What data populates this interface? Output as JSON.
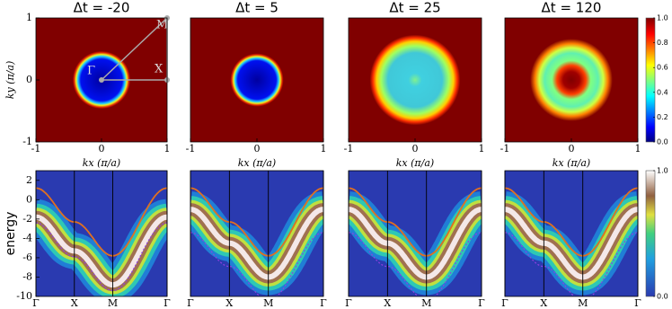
{
  "chart_data": [
    {
      "type": "heatmap",
      "title": "Δt = -20",
      "xlabel": "kx (π/a)",
      "ylabel": "ky (π/a)",
      "xlim": [
        -1,
        1
      ],
      "ylim": [
        -1,
        1
      ],
      "xticks": [
        -1,
        0,
        1
      ],
      "yticks": [
        -1,
        0,
        1
      ],
      "annotations": [
        "M",
        "Γ",
        "X"
      ]
    },
    {
      "type": "heatmap",
      "title": "Δt = 5",
      "xlabel": "kx (π/a)",
      "xlim": [
        -1,
        1
      ],
      "ylim": [
        -1,
        1
      ],
      "xticks": [
        -1,
        0,
        1
      ]
    },
    {
      "type": "heatmap",
      "title": "Δt = 25",
      "xlabel": "kx (π/a)",
      "xlim": [
        -1,
        1
      ],
      "ylim": [
        -1,
        1
      ],
      "xticks": [
        -1,
        0,
        1
      ]
    },
    {
      "type": "heatmap",
      "title": "Δt = 120",
      "xlabel": "kx (π/a)",
      "xlim": [
        -1,
        1
      ],
      "ylim": [
        -1,
        1
      ],
      "xticks": [
        -1,
        0,
        1
      ],
      "colorbar": {
        "lim": [
          0,
          1
        ],
        "ticks": [
          {
            "value": 0,
            "label": "0.0"
          },
          {
            "value": 0.2,
            "label": "0.2"
          },
          {
            "value": 0.4,
            "label": "0.4"
          },
          {
            "value": 0.6,
            "label": "0.6"
          },
          {
            "value": 0.8,
            "label": "0.8"
          },
          {
            "value": 1,
            "label": "1.0"
          }
        ]
      }
    },
    {
      "type": "spectral",
      "ylabel": "energy",
      "xlim": [
        0,
        3.414
      ],
      "ylim": [
        -10,
        3
      ],
      "yticks": [
        -10,
        -8,
        -6,
        -4,
        -2,
        0,
        2
      ],
      "xticks": [
        {
          "value": 0,
          "label": "Γ"
        },
        {
          "value": 1,
          "label": "X"
        },
        {
          "value": 2,
          "label": "M"
        },
        {
          "value": 3.414,
          "label": "Γ"
        }
      ]
    },
    {
      "type": "spectral",
      "xlim": [
        0,
        3.414
      ],
      "ylim": [
        -10,
        3
      ],
      "xticks": [
        {
          "value": 0,
          "label": "Γ"
        },
        {
          "value": 1,
          "label": "X"
        },
        {
          "value": 2,
          "label": "M"
        },
        {
          "value": 3.414,
          "label": "Γ"
        }
      ]
    },
    {
      "type": "spectral",
      "xlim": [
        0,
        3.414
      ],
      "ylim": [
        -10,
        3
      ],
      "xticks": [
        {
          "value": 0,
          "label": "Γ"
        },
        {
          "value": 1,
          "label": "X"
        },
        {
          "value": 2,
          "label": "M"
        },
        {
          "value": 3.414,
          "label": "Γ"
        }
      ]
    },
    {
      "type": "spectral",
      "xlim": [
        0,
        3.414
      ],
      "ylim": [
        -10,
        3
      ],
      "xticks": [
        {
          "value": 0,
          "label": "Γ"
        },
        {
          "value": 1,
          "label": "X"
        },
        {
          "value": 2,
          "label": "M"
        },
        {
          "value": 3.414,
          "label": "Γ"
        }
      ],
      "colorbar": {
        "lim": [
          0,
          1
        ],
        "ticks": [
          {
            "value": 0,
            "label": "0.0"
          },
          {
            "value": 1,
            "label": "1.0"
          }
        ]
      }
    }
  ]
}
